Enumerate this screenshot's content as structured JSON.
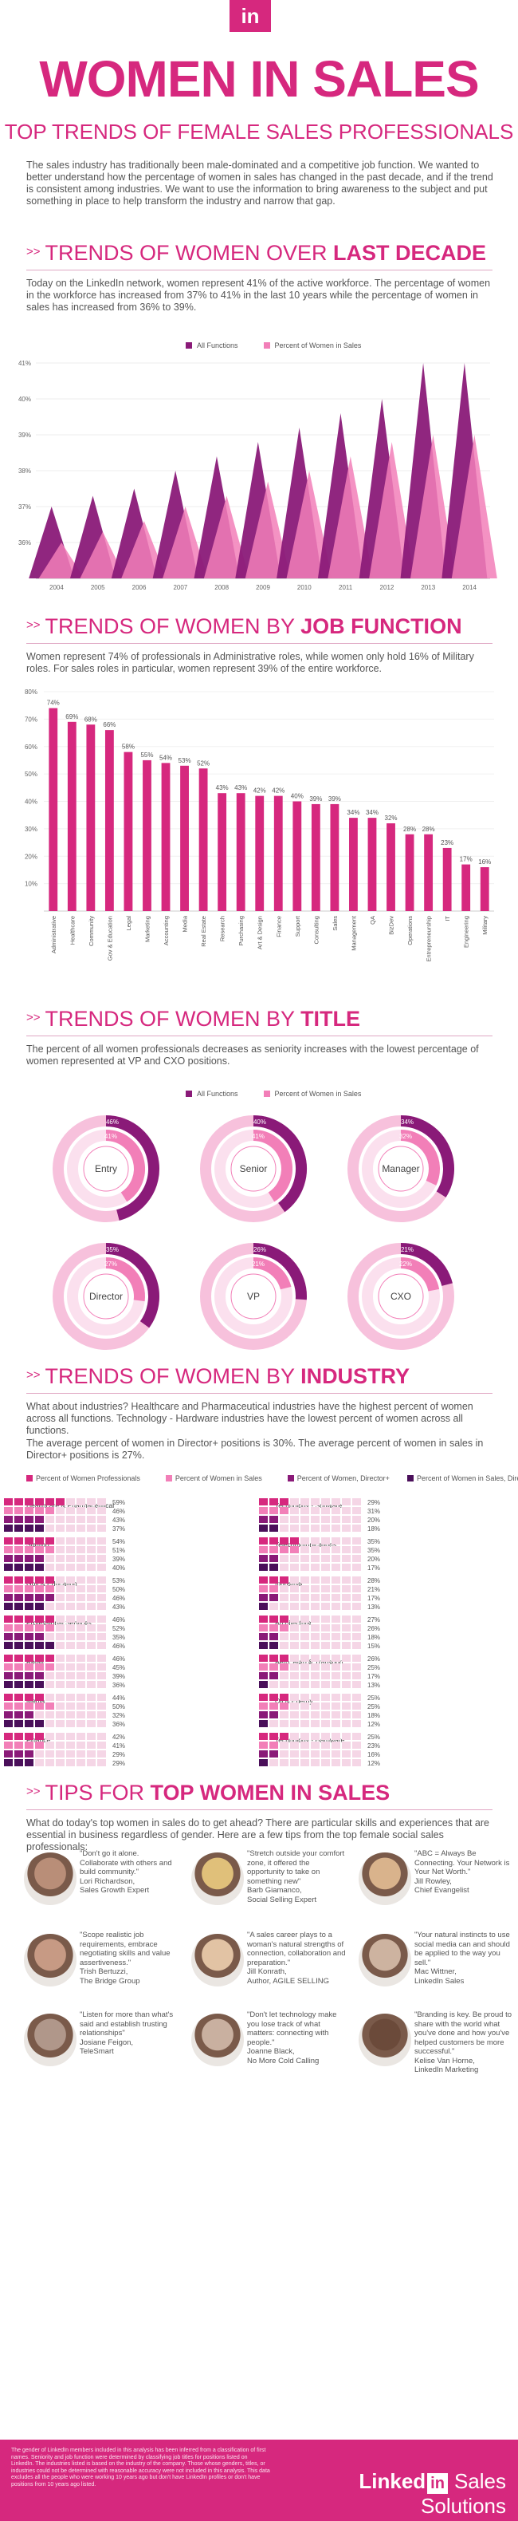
{
  "header": {
    "logo": "in",
    "title": "WOMEN IN SALES",
    "subtitle": "TOP TRENDS OF FEMALE SALES PROFESSIONALS",
    "intro": "The sales industry has traditionally been male-dominated and a competitive job function. We wanted to better understand how the percentage of women in sales has changed in the past decade, and if the trend is consistent among industries. We want to use the information to bring awareness to the subject and put something in place to help transform the industry and narrow that gap."
  },
  "colors": {
    "magenta": "#d6287e",
    "pink": "#f27fb8",
    "dark_purple": "#8a1a78",
    "purple": "#6b1670",
    "light_pink": "#f7c1dc"
  },
  "sections": {
    "decade": {
      "head_plain": "TRENDS OF WOMEN OVER ",
      "head_bold": "LAST DECADE",
      "text": "Today on the LinkedIn network, women represent 41% of the active workforce. The percentage of women in the workforce has increased from 37% to 41% in the last 10 years while the percentage of women in sales has increased from 36% to 39%."
    },
    "job": {
      "head_plain": "TRENDS OF WOMEN BY ",
      "head_bold": "JOB FUNCTION",
      "text": "Women represent 74% of professionals in Administrative roles, while women only hold 16% of Military roles. For sales roles in particular, women represent 39% of the entire workforce."
    },
    "title": {
      "head_plain": "TRENDS OF WOMEN BY ",
      "head_bold": "TITLE",
      "text": "The percent of all women professionals decreases as seniority increases with the lowest percentage of women represented at VP and CXO positions."
    },
    "industry": {
      "head_plain": "TRENDS OF WOMEN BY ",
      "head_bold": "INDUSTRY",
      "text1": "What about industries? Healthcare and Pharmaceutical industries have the highest percent of women across all functions. Technology - Hardware industries have the lowest percent of women across all functions.",
      "text2": "The average percent of women in Director+ positions is 30%. The average percent of women in sales in Director+ positions is 27%."
    },
    "tips": {
      "head_plain": "TIPS FOR ",
      "head_bold": "TOP WOMEN IN SALES",
      "text": "What do today's top women in sales do to get ahead? There are particular skills and experiences that are essential in business regardless of gender. Here are a few tips from the top female social sales professionals:"
    }
  },
  "chart_data": [
    {
      "type": "area",
      "title": "TRENDS OF WOMEN OVER LAST DECADE",
      "categories": [
        "2004",
        "2005",
        "2006",
        "2007",
        "2008",
        "2009",
        "2010",
        "2011",
        "2012",
        "2013",
        "2014"
      ],
      "series": [
        {
          "name": "All Functions",
          "values": [
            37,
            37.3,
            37.5,
            38,
            38.4,
            38.8,
            39.2,
            39.6,
            40,
            41,
            41
          ]
        },
        {
          "name": "Percent of Women in Sales",
          "values": [
            36,
            36.3,
            36.6,
            37,
            37.3,
            37.7,
            38,
            38.4,
            38.8,
            39,
            39
          ]
        }
      ],
      "ylim": [
        35,
        41
      ],
      "yticks": [
        "36%",
        "37%",
        "38%",
        "39%",
        "40%",
        "41%"
      ]
    },
    {
      "type": "bar",
      "title": "TRENDS OF WOMEN BY JOB FUNCTION",
      "categories": [
        "Administrative",
        "Healthcare",
        "Community",
        "Gov & Education",
        "Legal",
        "Marketing",
        "Accounting",
        "Media",
        "Real Estate",
        "Research",
        "Purchasing",
        "Art & Design",
        "Finance",
        "Support",
        "Consulting",
        "Sales",
        "Management",
        "QA",
        "BizDev",
        "Operations",
        "Entrepreneurship",
        "IT",
        "Engineering",
        "Military"
      ],
      "values": [
        74,
        69,
        68,
        66,
        58,
        55,
        54,
        53,
        52,
        43,
        43,
        42,
        42,
        40,
        39,
        39,
        34,
        34,
        32,
        28,
        28,
        23,
        17,
        16
      ],
      "value_labels": [
        "74%",
        "69%",
        "68%",
        "66%",
        "58%",
        "55%",
        "54%",
        "53%",
        "52%",
        "43%",
        "43%",
        "42%",
        "42%",
        "40%",
        "39%",
        "39%",
        "34%",
        "34%",
        "32%",
        "28%",
        "28%",
        "23%",
        "17%",
        "16%"
      ],
      "ylim": [
        0,
        80
      ],
      "yticks": [
        "10%",
        "20%",
        "30%",
        "40%",
        "50%",
        "60%",
        "70%",
        "80%"
      ]
    },
    {
      "type": "pie",
      "title": "TRENDS OF WOMEN BY TITLE",
      "legend": [
        "All Functions",
        "Percent of Women in Sales"
      ],
      "titles": [
        {
          "name": "Entry",
          "all": 46,
          "all_label": "46%",
          "sales": 41,
          "sales_label": "41%"
        },
        {
          "name": "Senior",
          "all": 40,
          "all_label": "40%",
          "sales": 41,
          "sales_label": "41%"
        },
        {
          "name": "Manager",
          "all": 34,
          "all_label": "34%",
          "sales": 32,
          "sales_label": "32%"
        },
        {
          "name": "Director",
          "all": 35,
          "all_label": "35%",
          "sales": 27,
          "sales_label": "27%"
        },
        {
          "name": "VP",
          "all": 26,
          "all_label": "26%",
          "sales": 21,
          "sales_label": "21%"
        },
        {
          "name": "CXO",
          "all": 21,
          "all_label": "21%",
          "sales": 22,
          "sales_label": "22%"
        }
      ]
    },
    {
      "type": "bar",
      "title": "TRENDS OF WOMEN BY INDUSTRY",
      "legend": [
        "Percent of Women Professionals",
        "Percent of Women in Sales",
        "Percent of Women, Director+",
        "Percent of Women in Sales, Director+"
      ],
      "industries": [
        {
          "name": "Healthcare & Pharmaceutical",
          "values": [
            59,
            46,
            43,
            37
          ],
          "labels": [
            "59%",
            "46%",
            "43%",
            "37%"
          ]
        },
        {
          "name": "Staffing",
          "values": [
            54,
            51,
            39,
            40
          ],
          "labels": [
            "54%",
            "51%",
            "39%",
            "40%"
          ]
        },
        {
          "name": "Gov & Education",
          "values": [
            53,
            50,
            46,
            43
          ],
          "labels": [
            "53%",
            "50%",
            "46%",
            "43%"
          ]
        },
        {
          "name": "Professional Services",
          "values": [
            46,
            52,
            35,
            46
          ],
          "labels": [
            "46%",
            "52%",
            "35%",
            "46%"
          ]
        },
        {
          "name": "Retail",
          "values": [
            46,
            45,
            39,
            36
          ],
          "labels": [
            "46%",
            "45%",
            "39%",
            "36%"
          ]
        },
        {
          "name": "Media",
          "values": [
            44,
            50,
            32,
            36
          ],
          "labels": [
            "44%",
            "50%",
            "32%",
            "36%"
          ]
        },
        {
          "name": "Finance",
          "values": [
            42,
            41,
            29,
            29
          ],
          "labels": [
            "42%",
            "41%",
            "29%",
            "29%"
          ]
        },
        {
          "name": "Technology - Software",
          "values": [
            29,
            31,
            20,
            18
          ],
          "labels": [
            "29%",
            "31%",
            "20%",
            "18%"
          ]
        },
        {
          "name": "Telecommunications",
          "values": [
            35,
            35,
            20,
            17
          ],
          "labels": [
            "35%",
            "35%",
            "20%",
            "17%"
          ]
        },
        {
          "name": "Industrial",
          "values": [
            28,
            21,
            17,
            13
          ],
          "labels": [
            "28%",
            "21%",
            "17%",
            "13%"
          ]
        },
        {
          "name": "Architecture",
          "values": [
            27,
            26,
            18,
            15
          ],
          "labels": [
            "27%",
            "26%",
            "18%",
            "15%"
          ]
        },
        {
          "name": "Aero, Auto & Transport",
          "values": [
            26,
            25,
            17,
            13
          ],
          "labels": [
            "26%",
            "25%",
            "17%",
            "13%"
          ]
        },
        {
          "name": "Oil & Energy",
          "values": [
            25,
            25,
            18,
            12
          ],
          "labels": [
            "25%",
            "25%",
            "18%",
            "12%"
          ]
        },
        {
          "name": "Technology - Hardware",
          "values": [
            25,
            23,
            16,
            12
          ],
          "labels": [
            "25%",
            "23%",
            "16%",
            "12%"
          ]
        }
      ]
    }
  ],
  "legends": {
    "decade": [
      "All Functions",
      "Percent of Women in Sales"
    ],
    "title": [
      "All Functions",
      "Percent of Women in Sales"
    ],
    "industry": [
      "Percent of Women Professionals",
      "Percent of Women in Sales",
      "Percent of Women, Director+",
      "Percent of Women in Sales, Director+"
    ]
  },
  "tips": [
    {
      "quote": "\"Don't go it alone. Collaborate with others and build community.\"",
      "author": "Lori Richardson,",
      "org": "Sales Growth Expert"
    },
    {
      "quote": "\"Stretch outside your comfort zone, it offered the opportunity to take on something new\"",
      "author": "Barb Giamanco,",
      "org": "Social Selling Expert"
    },
    {
      "quote": "\"ABC = Always Be Connecting. Your Network is Your Net Worth.\"",
      "author": "Jill Rowley,",
      "org": "Chief Evangelist"
    },
    {
      "quote": "\"Scope realistic job requirements, embrace negotiating skills and value assertiveness.\"",
      "author": "Trish Bertuzzi,",
      "org": "The Bridge Group"
    },
    {
      "quote": "\"A sales career plays to a woman's natural strengths of connection, collaboration and preparation.\"",
      "author": "Jill Konrath,",
      "org": "Author, AGILE SELLING"
    },
    {
      "quote": "\"Your natural instincts to use social media can and should be applied to the way you sell.\"",
      "author": "Mac Wittner,",
      "org": "LinkedIn Sales"
    },
    {
      "quote": "\"Listen for more than what's said and establish trusting relationships\"",
      "author": "Josiane Feigon,",
      "org": "TeleSmart"
    },
    {
      "quote": "\"Don't let technology make you lose track of what matters: connecting with people.\"",
      "author": "Joanne Black,",
      "org": "No More Cold Calling"
    },
    {
      "quote": "\"Branding is key. Be proud to share with the world what you've done and how you've helped customers be more successful.\"",
      "author": "Kelise Van Horne,",
      "org": "LinkedIn Marketing"
    }
  ],
  "footer": {
    "note": "The gender of LinkedIn members included in this analysis has been inferred from a classification of first names. Seniority and job function were determined by classifying job titles for positions listed on LinkedIn. The industries listed is based on the industry of the company. Those whose genders, titles, or industries could not be determined with reasonable accuracy were not included in this analysis. This data excludes all the people who were working 10 years ago but don't have LinkedIn profiles or don't have positions from 10 years ago listed.",
    "brand_linked": "Linked",
    "brand_in": "in",
    "brand_tail": "Sales Solutions"
  }
}
